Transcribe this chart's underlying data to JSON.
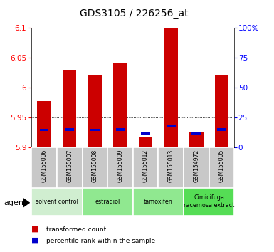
{
  "title": "GDS3105 / 226256_at",
  "samples": [
    "GSM155006",
    "GSM155007",
    "GSM155008",
    "GSM155009",
    "GSM155012",
    "GSM155013",
    "GSM154972",
    "GSM155005"
  ],
  "red_values": [
    5.978,
    6.028,
    6.022,
    6.042,
    5.918,
    6.1,
    5.926,
    6.02
  ],
  "blue_values": [
    5.927,
    5.928,
    5.927,
    5.928,
    5.922,
    5.933,
    5.922,
    5.928
  ],
  "blue_heights": [
    0.004,
    0.004,
    0.004,
    0.004,
    0.004,
    0.004,
    0.004,
    0.004
  ],
  "y_min": 5.9,
  "y_max": 6.1,
  "y_ticks": [
    5.9,
    5.95,
    6.0,
    6.05,
    6.1
  ],
  "y_tick_labels": [
    "5.9",
    "5.95",
    "6",
    "6.05",
    "6.1"
  ],
  "right_y_ticks_pct": [
    0,
    25,
    50,
    75,
    100
  ],
  "right_y_labels": [
    "0",
    "25",
    "50",
    "75",
    "100%"
  ],
  "groups": [
    {
      "label": "solvent control",
      "start": 0,
      "end": 2,
      "color": "#d0eed0"
    },
    {
      "label": "estradiol",
      "start": 2,
      "end": 4,
      "color": "#90e890"
    },
    {
      "label": "tamoxifen",
      "start": 4,
      "end": 6,
      "color": "#90e890"
    },
    {
      "label": "Cimicifuga\nracemosa extract",
      "start": 6,
      "end": 8,
      "color": "#55dd55"
    }
  ],
  "bar_color_red": "#cc0000",
  "bar_color_blue": "#0000cc",
  "bar_width": 0.55,
  "agent_label": "agent",
  "legend_red": "transformed count",
  "legend_blue": "percentile rank within the sample",
  "background_gray": "#c8c8c8",
  "title_fontsize": 10,
  "tick_fontsize": 7.5,
  "sample_fontsize": 5.5
}
